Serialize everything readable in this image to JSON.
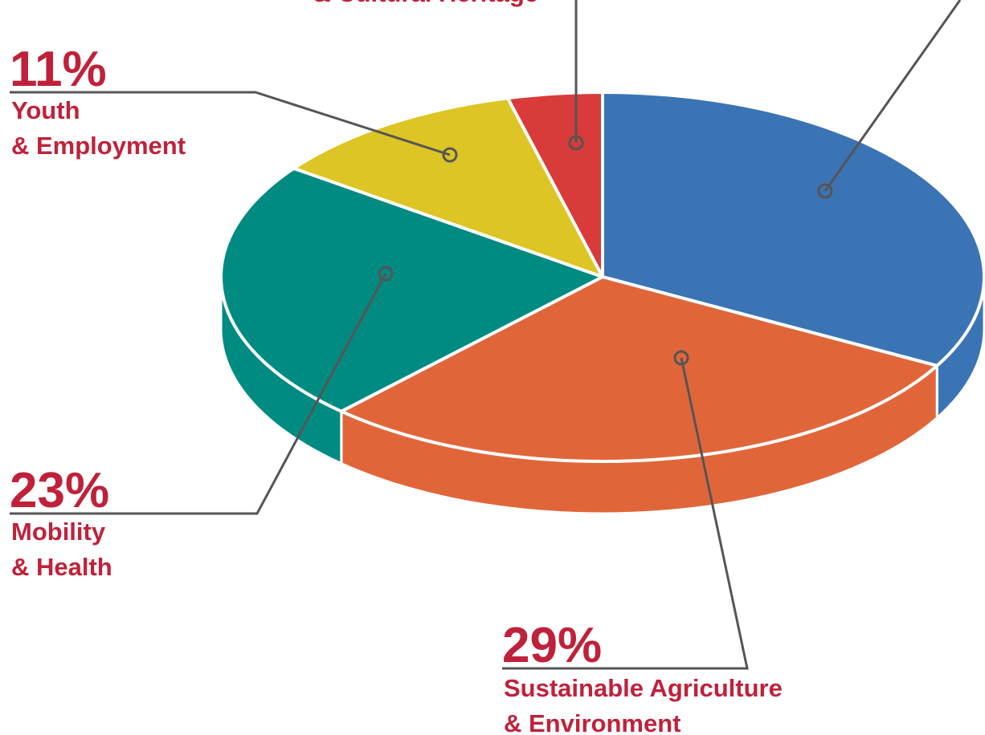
{
  "chart_data": {
    "type": "pie3d",
    "values": [
      4,
      33,
      29,
      23,
      11
    ],
    "value_labels": [
      null,
      null,
      "29%",
      "23%",
      "11%"
    ],
    "labels": [
      [
        "& Cultural Heritage"
      ],
      null,
      [
        "Sustainable Agriculture",
        "& Environment"
      ],
      [
        "Mobility",
        "& Health"
      ],
      [
        "Youth",
        "& Employment"
      ]
    ],
    "colors": [
      "#d93a3a",
      "#3b74b5",
      "#e0663a",
      "#008b82",
      "#dcc524"
    ]
  }
}
